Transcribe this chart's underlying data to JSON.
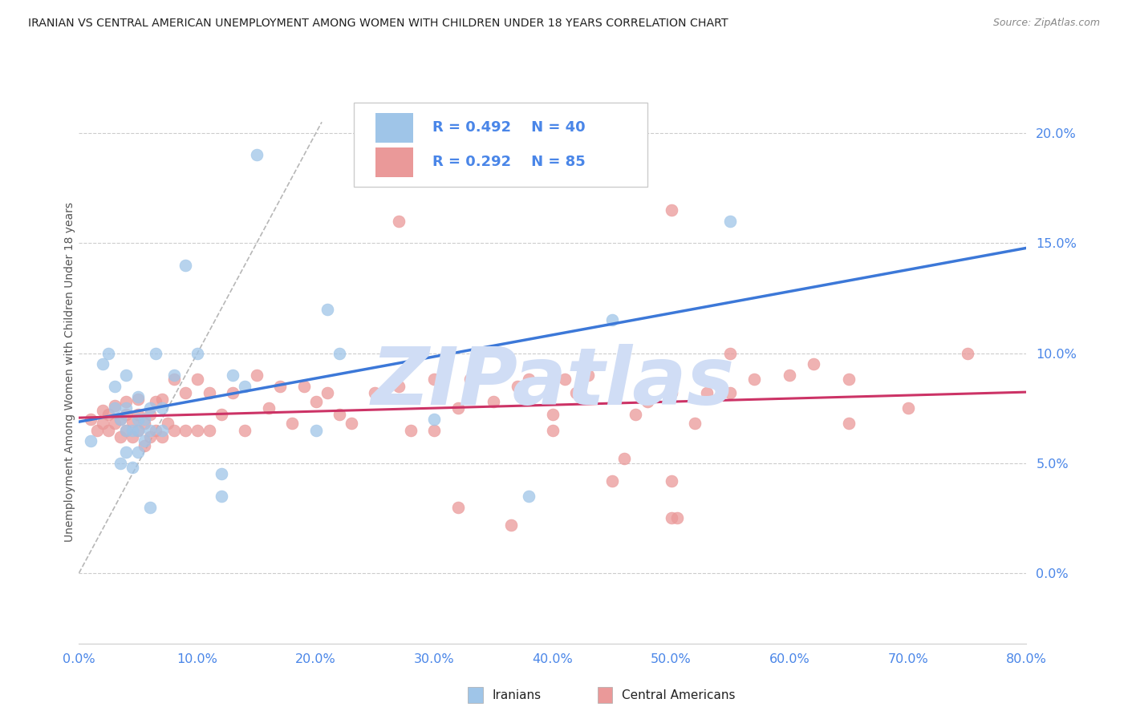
{
  "title": "IRANIAN VS CENTRAL AMERICAN UNEMPLOYMENT AMONG WOMEN WITH CHILDREN UNDER 18 YEARS CORRELATION CHART",
  "source": "Source: ZipAtlas.com",
  "ylabel": "Unemployment Among Women with Children Under 18 years",
  "xmin": 0.0,
  "xmax": 0.8,
  "ymin": -0.032,
  "ymax": 0.215,
  "iranian_R": 0.492,
  "iranian_N": 40,
  "central_R": 0.292,
  "central_N": 85,
  "iranian_color": "#9fc5e8",
  "central_color": "#ea9999",
  "regression_iranian_color": "#3c78d8",
  "regression_central_color": "#cc3366",
  "diagonal_color": "#b7b7b7",
  "background_color": "#ffffff",
  "grid_color": "#cccccc",
  "watermark": "ZIPatlas",
  "watermark_color": "#d0ddf5",
  "axis_label_color": "#4a86e8",
  "legend_text_color": "#4a86e8",
  "title_color": "#222222",
  "source_color": "#888888",
  "ylabel_color": "#555555",
  "iranian_x": [
    0.01,
    0.02,
    0.025,
    0.03,
    0.03,
    0.035,
    0.035,
    0.04,
    0.04,
    0.04,
    0.04,
    0.045,
    0.045,
    0.05,
    0.05,
    0.05,
    0.05,
    0.055,
    0.055,
    0.06,
    0.06,
    0.065,
    0.07,
    0.07,
    0.08,
    0.09,
    0.1,
    0.12,
    0.12,
    0.13,
    0.14,
    0.15,
    0.2,
    0.21,
    0.22,
    0.3,
    0.38,
    0.45,
    0.55,
    0.06
  ],
  "iranian_y": [
    0.06,
    0.095,
    0.1,
    0.075,
    0.085,
    0.05,
    0.07,
    0.055,
    0.065,
    0.075,
    0.09,
    0.048,
    0.065,
    0.055,
    0.065,
    0.07,
    0.08,
    0.06,
    0.07,
    0.075,
    0.065,
    0.1,
    0.065,
    0.075,
    0.09,
    0.14,
    0.1,
    0.035,
    0.045,
    0.09,
    0.085,
    0.19,
    0.065,
    0.12,
    0.1,
    0.07,
    0.035,
    0.115,
    0.16,
    0.03
  ],
  "central_x": [
    0.01,
    0.015,
    0.02,
    0.02,
    0.025,
    0.025,
    0.03,
    0.03,
    0.035,
    0.035,
    0.04,
    0.04,
    0.04,
    0.045,
    0.045,
    0.05,
    0.05,
    0.05,
    0.055,
    0.055,
    0.06,
    0.06,
    0.065,
    0.065,
    0.07,
    0.07,
    0.075,
    0.08,
    0.08,
    0.09,
    0.09,
    0.1,
    0.1,
    0.11,
    0.11,
    0.12,
    0.13,
    0.14,
    0.15,
    0.16,
    0.17,
    0.18,
    0.19,
    0.2,
    0.21,
    0.22,
    0.23,
    0.25,
    0.27,
    0.28,
    0.3,
    0.32,
    0.33,
    0.35,
    0.37,
    0.38,
    0.4,
    0.41,
    0.42,
    0.43,
    0.45,
    0.46,
    0.47,
    0.48,
    0.5,
    0.5,
    0.5,
    0.52,
    0.53,
    0.55,
    0.55,
    0.57,
    0.6,
    0.62,
    0.65,
    0.65,
    0.7,
    0.75,
    0.27,
    0.32,
    0.365,
    0.505,
    0.3,
    0.4,
    0.5
  ],
  "central_y": [
    0.07,
    0.065,
    0.068,
    0.074,
    0.065,
    0.072,
    0.068,
    0.076,
    0.062,
    0.07,
    0.065,
    0.072,
    0.078,
    0.062,
    0.069,
    0.072,
    0.065,
    0.079,
    0.058,
    0.068,
    0.062,
    0.072,
    0.065,
    0.078,
    0.062,
    0.079,
    0.068,
    0.065,
    0.088,
    0.065,
    0.082,
    0.065,
    0.088,
    0.065,
    0.082,
    0.072,
    0.082,
    0.065,
    0.09,
    0.075,
    0.085,
    0.068,
    0.085,
    0.078,
    0.082,
    0.072,
    0.068,
    0.082,
    0.085,
    0.065,
    0.088,
    0.075,
    0.088,
    0.078,
    0.085,
    0.088,
    0.065,
    0.088,
    0.082,
    0.09,
    0.042,
    0.052,
    0.072,
    0.078,
    0.025,
    0.042,
    0.165,
    0.068,
    0.082,
    0.082,
    0.1,
    0.088,
    0.09,
    0.095,
    0.068,
    0.088,
    0.075,
    0.1,
    0.16,
    0.03,
    0.022,
    0.025,
    0.065,
    0.072,
    0.082
  ]
}
